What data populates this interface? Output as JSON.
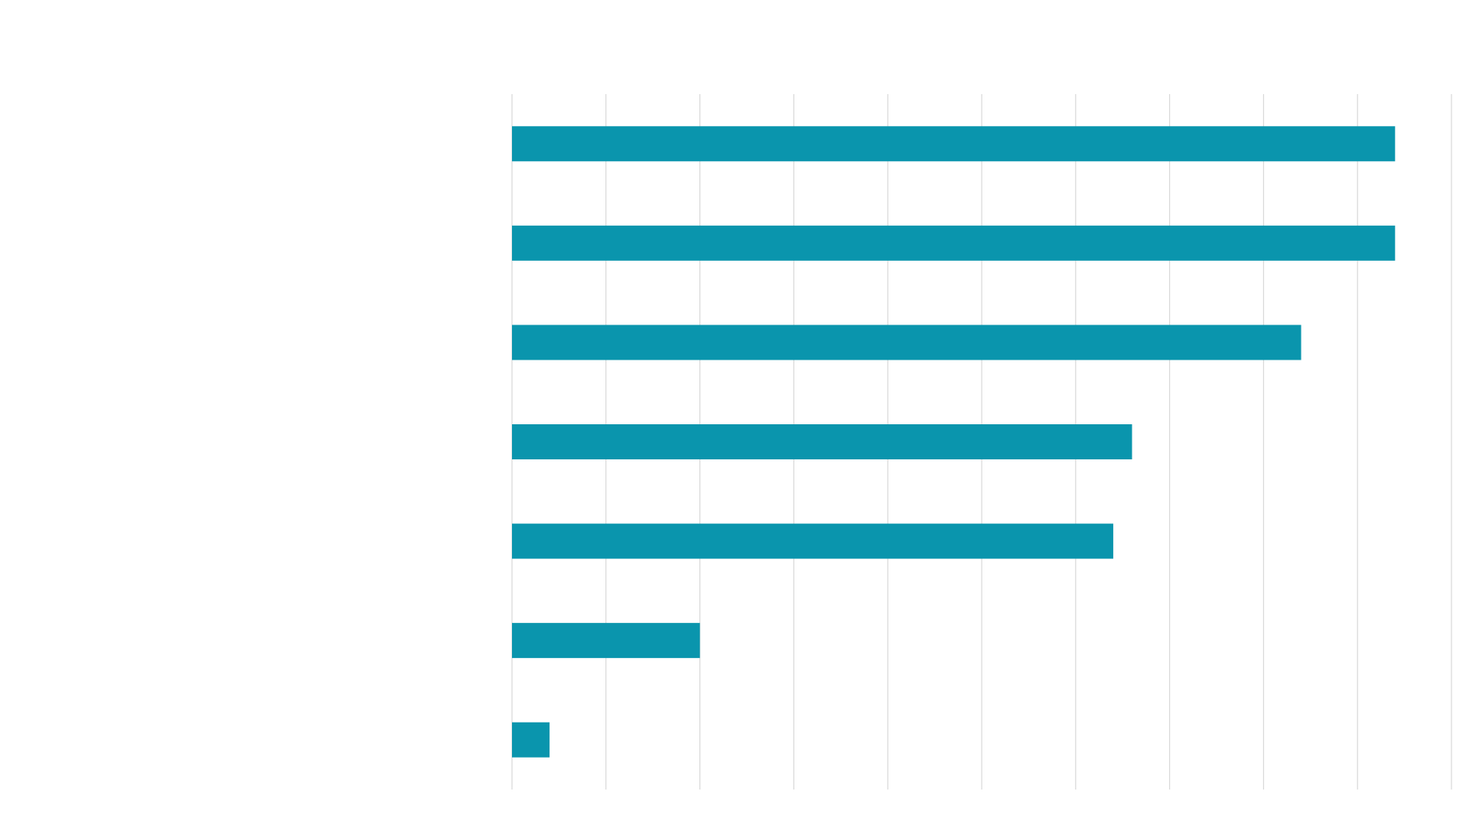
{
  "chart_data": {
    "type": "bar",
    "orientation": "horizontal",
    "title": "",
    "xlabel": "",
    "ylabel": "",
    "categories": [
      "",
      "",
      "",
      "",
      "",
      "",
      ""
    ],
    "values": [
      94,
      94,
      84,
      66,
      64,
      20,
      4
    ],
    "xlim": [
      0,
      100
    ],
    "grid": "vertical",
    "legend": "none",
    "bar_color": "#0a95ad",
    "grid_color": "#d9d9d9"
  }
}
